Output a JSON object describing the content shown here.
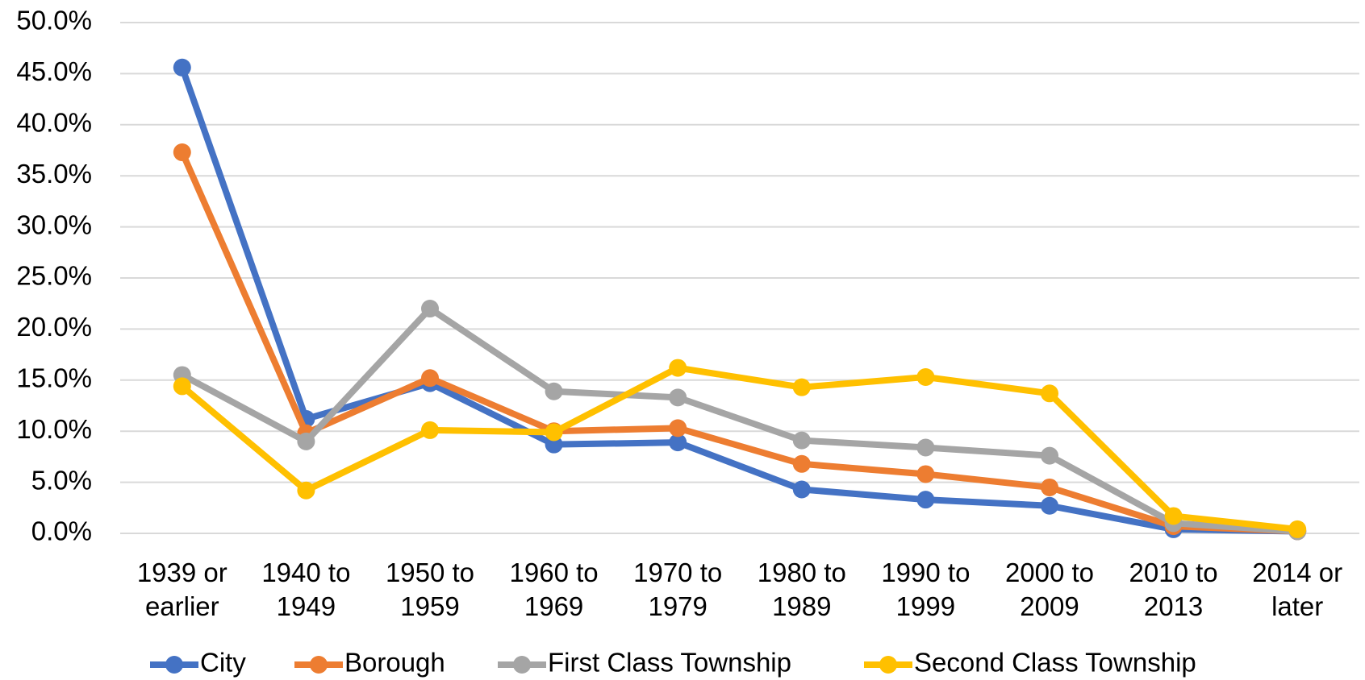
{
  "chart_data": {
    "type": "line",
    "categories": [
      "1939 or earlier",
      "1940 to 1949",
      "1950 to 1959",
      "1960 to 1969",
      "1970 to 1979",
      "1980 to 1989",
      "1990 to 1999",
      "2000 to 2009",
      "2010 to 2013",
      "2014 or later"
    ],
    "series": [
      {
        "name": "City",
        "color": "#4472c4",
        "values": [
          45.6,
          11.2,
          14.7,
          8.7,
          8.9,
          4.3,
          3.3,
          2.7,
          0.4,
          0.2
        ]
      },
      {
        "name": "Borough",
        "color": "#ed7d31",
        "values": [
          37.3,
          9.8,
          15.2,
          10.0,
          10.3,
          6.8,
          5.8,
          4.5,
          0.7,
          0.2
        ]
      },
      {
        "name": "First Class Township",
        "color": "#a5a5a5",
        "values": [
          15.5,
          9.0,
          22.0,
          13.9,
          13.3,
          9.1,
          8.4,
          7.6,
          1.0,
          0.2
        ]
      },
      {
        "name": "Second Class Township",
        "color": "#ffc000",
        "values": [
          14.4,
          4.2,
          10.1,
          9.9,
          16.2,
          14.3,
          15.3,
          13.7,
          1.7,
          0.4
        ]
      }
    ],
    "ylim": [
      0,
      50
    ],
    "yticks": [
      {
        "value": 0,
        "label": "0.0%"
      },
      {
        "value": 5,
        "label": "5.0%"
      },
      {
        "value": 10,
        "label": "10.0%"
      },
      {
        "value": 15,
        "label": "15.0%"
      },
      {
        "value": 20,
        "label": "20.0%"
      },
      {
        "value": 25,
        "label": "25.0%"
      },
      {
        "value": 30,
        "label": "30.0%"
      },
      {
        "value": 35,
        "label": "35.0%"
      },
      {
        "value": 40,
        "label": "40.0%"
      },
      {
        "value": 45,
        "label": "45.0%"
      },
      {
        "value": 50,
        "label": "50.0%"
      }
    ],
    "grid": true,
    "legend": "bottom"
  }
}
